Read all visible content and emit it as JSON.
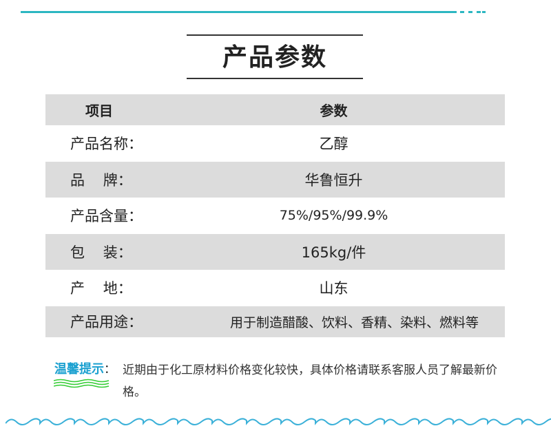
{
  "title": "产品参数",
  "accent_color": "#2cb6c1",
  "table": {
    "headers": [
      "项目",
      "参数"
    ],
    "rows": [
      {
        "label": "产品名称：",
        "value": "乙醇"
      },
      {
        "label": "品    牌：",
        "value": "华鲁恒升"
      },
      {
        "label": "产品含量：",
        "value": "75%/95%/99.9%"
      },
      {
        "label": "包    装：",
        "value": "165kg/件"
      },
      {
        "label": "产    地：",
        "value": "山东"
      },
      {
        "label": "产品用途：",
        "value": "用于制造醋酸、饮料、香精、染料、燃料等"
      }
    ]
  },
  "tip": {
    "label": "温馨提示",
    "colon": "：",
    "text": "近期由于化工原材料价格变化较快，具体价格请联系客服人员了解最新价格。"
  }
}
